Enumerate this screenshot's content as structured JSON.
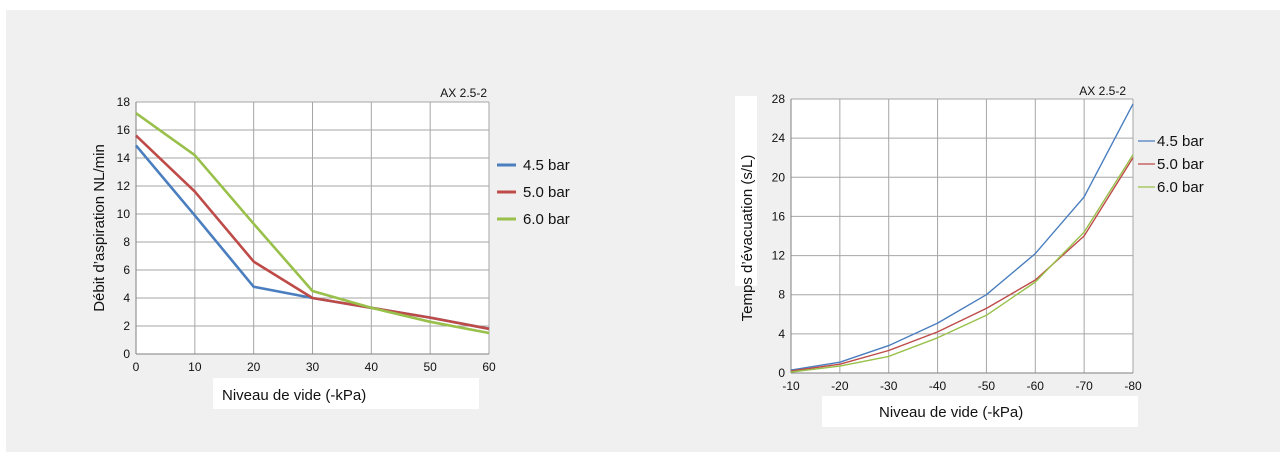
{
  "chart_data": [
    {
      "type": "line",
      "title": "AX 2.5-2",
      "xlabel": "Niveau de vide (-kPa)",
      "ylabel": "Débit d’aspiration NL/min",
      "x": [
        0,
        10,
        20,
        30,
        40,
        50,
        60
      ],
      "x_tick_labels": [
        "0",
        "10",
        "20",
        "30",
        "40",
        "50",
        "60"
      ],
      "xlim": [
        0,
        60
      ],
      "ylim": [
        0,
        18
      ],
      "y_ticks": [
        0,
        2,
        4,
        6,
        8,
        10,
        12,
        14,
        16,
        18
      ],
      "grid": true,
      "legend_position": "right",
      "series": [
        {
          "name": "4.5 bar",
          "color": "#4a7ebf",
          "values": [
            14.9,
            9.9,
            4.8,
            4.0,
            3.3,
            2.6,
            1.8
          ]
        },
        {
          "name": "5.0 bar",
          "color": "#be4b48",
          "values": [
            15.6,
            11.6,
            6.6,
            4.0,
            3.3,
            2.6,
            1.8
          ]
        },
        {
          "name": "6.0 bar",
          "color": "#98c04a",
          "values": [
            17.2,
            14.2,
            9.3,
            4.5,
            3.3,
            2.3,
            1.5
          ]
        }
      ]
    },
    {
      "type": "line",
      "title": "AX 2.5-2",
      "xlabel": "Niveau de vide (-kPa)",
      "ylabel": "Temps d’évacuation (s/L)",
      "x": [
        -10,
        -20,
        -30,
        -40,
        -50,
        -60,
        -70,
        -80
      ],
      "x_tick_labels": [
        "-10",
        "-20",
        "-30",
        "-40",
        "-50",
        "-60",
        "-70",
        "-80"
      ],
      "ylim": [
        0,
        28
      ],
      "y_ticks": [
        0,
        4,
        8,
        12,
        16,
        20,
        24,
        28
      ],
      "grid": true,
      "legend_position": "right",
      "series": [
        {
          "name": "4.5 bar",
          "color": "#4a7ebf",
          "values": [
            0.3,
            1.1,
            2.8,
            5.1,
            8.0,
            12.2,
            18.0,
            27.5
          ]
        },
        {
          "name": "5.0 bar",
          "color": "#be4b48",
          "values": [
            0.2,
            0.9,
            2.3,
            4.2,
            6.6,
            9.5,
            14.0,
            22.0
          ]
        },
        {
          "name": "6.0 bar",
          "color": "#98c04a",
          "values": [
            0.1,
            0.7,
            1.7,
            3.6,
            5.9,
            9.3,
            14.4,
            22.3
          ]
        }
      ]
    }
  ]
}
